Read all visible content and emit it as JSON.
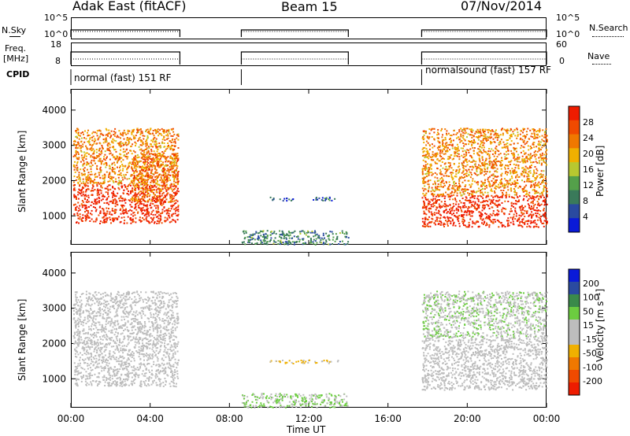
{
  "header": {
    "radar": "Adak East (fitACF)",
    "beam": "Beam 15",
    "date": "07/Nov/2014"
  },
  "side_labels": {
    "nsky": "N.Sky",
    "freq_line1": "Freq.",
    "freq_line2": "[MHz]",
    "cpid": "CPID",
    "nsearch": "N.Search",
    "nave": "Nave"
  },
  "nsky_axis": {
    "top": "10^5",
    "bottom": "10^0"
  },
  "nsearch_axis": {
    "top": "10^5",
    "bottom": "10^0"
  },
  "freq_axis": {
    "top": "18",
    "bottom": "8"
  },
  "nave_axis": {
    "top": "60",
    "bottom": "0"
  },
  "cpid_labels": [
    "normal (fast) 151 RF",
    "normalsound (fast) 157 RF"
  ],
  "colors": {
    "power_scale": [
      "#0a1ad8",
      "#2a4aa0",
      "#3a7a5a",
      "#54a04a",
      "#b8c830",
      "#f0b000",
      "#f07800",
      "#f04a00",
      "#ee1c00"
    ],
    "velocity_scale": [
      "#ee1c00",
      "#f04a00",
      "#f07800",
      "#f0b000",
      "#bdbdbd",
      "#bdbdbd",
      "#6ccc40",
      "#3a8a4a",
      "#2a4aa0",
      "#0a1ad8"
    ]
  },
  "chart_data": [
    {
      "type": "heatmap",
      "title": "",
      "xlabel": "Time UT",
      "ylabel": "Slant Range [km]",
      "xticks": [
        "00:00",
        "04:00",
        "08:00",
        "12:00",
        "16:00",
        "20:00",
        "00:00"
      ],
      "xlim_hours": [
        0,
        24
      ],
      "ylim": [
        180,
        4600
      ],
      "yticks": [
        1000,
        2000,
        3000,
        4000
      ],
      "colorbar": {
        "label": "Power [dB]",
        "ticks": [
          "4",
          "8",
          "12",
          "16",
          "20",
          "24",
          "28"
        ],
        "range": [
          0,
          30
        ]
      },
      "data_intervals_hours": [
        [
          0.0,
          5.5
        ],
        [
          8.6,
          14.0
        ],
        [
          17.7,
          24.0
        ]
      ],
      "echo_regions": [
        {
          "t": [
            0.1,
            5.4
          ],
          "range_km": [
            800,
            1900
          ],
          "power_db": 30
        },
        {
          "t": [
            0.1,
            5.4
          ],
          "range_km": [
            1900,
            3500
          ],
          "power_db": 22
        },
        {
          "t": [
            3.0,
            5.4
          ],
          "range_km": [
            1400,
            2800
          ],
          "power_db": 24
        },
        {
          "t": [
            8.6,
            14.0
          ],
          "range_km": [
            200,
            600
          ],
          "power_db": 8
        },
        {
          "t": [
            10.0,
            11.2
          ],
          "range_km": [
            1450,
            1550
          ],
          "power_db": 4
        },
        {
          "t": [
            12.0,
            13.5
          ],
          "range_km": [
            1450,
            1550
          ],
          "power_db": 4
        },
        {
          "t": [
            17.7,
            24.0
          ],
          "range_km": [
            700,
            1600
          ],
          "power_db": 30
        },
        {
          "t": [
            17.7,
            24.0
          ],
          "range_km": [
            1600,
            3500
          ],
          "power_db": 22
        }
      ]
    },
    {
      "type": "heatmap",
      "title": "",
      "xlabel": "Time UT",
      "ylabel": "Slant Range [km]",
      "xticks": [
        "00:00",
        "04:00",
        "08:00",
        "12:00",
        "16:00",
        "20:00",
        "00:00"
      ],
      "xlim_hours": [
        0,
        24
      ],
      "ylim": [
        180,
        4600
      ],
      "yticks": [
        1000,
        2000,
        3000,
        4000
      ],
      "colorbar": {
        "label": "Velocity [m s⁻¹]",
        "ticks": [
          "-200",
          "-100",
          "-50",
          "-15",
          "15",
          "50",
          "100",
          "200"
        ],
        "range": [
          -250,
          250
        ]
      },
      "data_intervals_hours": [
        [
          0.0,
          5.5
        ],
        [
          8.6,
          14.0
        ],
        [
          17.7,
          24.0
        ]
      ],
      "echo_regions": [
        {
          "t": [
            0.1,
            5.4
          ],
          "range_km": [
            800,
            2200
          ],
          "velocity": 0
        },
        {
          "t": [
            0.1,
            5.4
          ],
          "range_km": [
            2200,
            3500
          ],
          "velocity": 10
        },
        {
          "t": [
            8.6,
            14.0
          ],
          "range_km": [
            200,
            600
          ],
          "velocity": 60
        },
        {
          "t": [
            10.0,
            13.5
          ],
          "range_km": [
            1450,
            1550
          ],
          "velocity": -60
        },
        {
          "t": [
            17.7,
            24.0
          ],
          "range_km": [
            700,
            2200
          ],
          "velocity": 0
        },
        {
          "t": [
            17.7,
            24.0
          ],
          "range_km": [
            2200,
            3500
          ],
          "velocity": 40
        }
      ]
    }
  ]
}
